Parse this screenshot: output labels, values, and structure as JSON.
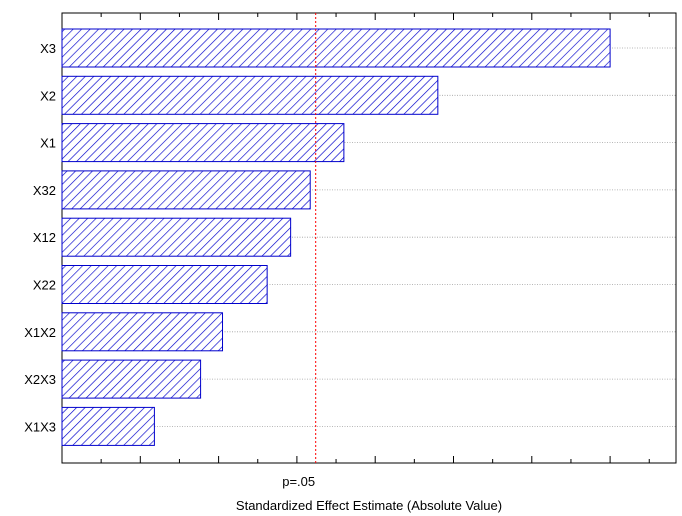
{
  "chart_data": {
    "type": "bar",
    "orientation": "horizontal",
    "title": "",
    "xlabel": "Standardized Effect Estimate (Absolute Value)",
    "ylabel": "",
    "categories": [
      "X3",
      "X2",
      "X1",
      "X32",
      "X12",
      "X22",
      "X1X2",
      "X2X3",
      "X1X3"
    ],
    "values": [
      7.0,
      4.8,
      3.6,
      3.17,
      2.92,
      2.62,
      2.05,
      1.77,
      1.18
    ],
    "xlim": [
      0,
      7.8
    ],
    "reference_line": {
      "value": 3.24,
      "label": "p=.05",
      "color": "#ff0000",
      "style": "dotted"
    },
    "bar_color": "#0000cc",
    "bar_pattern": "diagonal-hatch",
    "grid": {
      "horizontal": true,
      "vertical": false
    },
    "legend": "none"
  }
}
